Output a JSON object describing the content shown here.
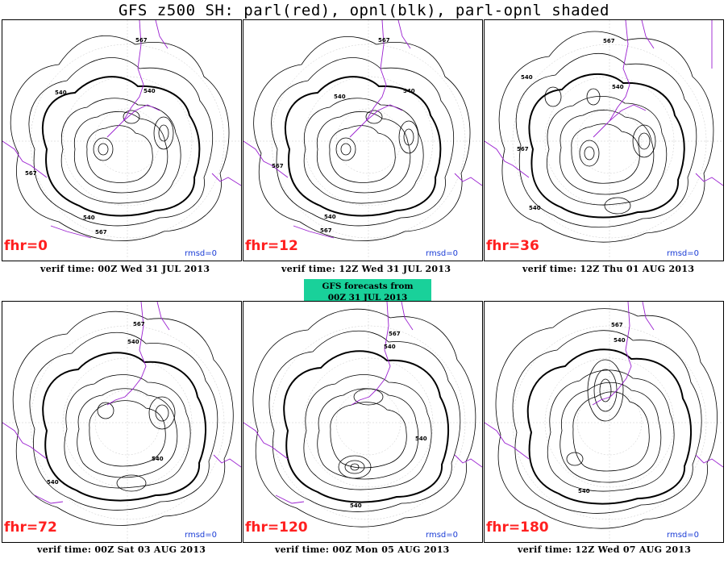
{
  "title": "GFS z500 SH: parl(red), opnl(blk), parl-opnl  shaded",
  "center_box": {
    "line1": "GFS forecasts from",
    "line2": "00Z 31 JUL 2013"
  },
  "colors": {
    "fhr_label": "#ff2020",
    "rmsd_label": "#1a3cd6",
    "coastline": "#9a1fd0",
    "center_box": "#19d19a",
    "contour": "#000000"
  },
  "panels": [
    {
      "fhr": "fhr=0",
      "rmsd": "rmsd=0",
      "verif": "verif time: 00Z Wed 31 JUL 2013",
      "labels": [
        "567",
        "540",
        "540",
        "567",
        "540",
        "567"
      ]
    },
    {
      "fhr": "fhr=12",
      "rmsd": "rmsd=0",
      "verif": "verif time: 12Z Wed 31 JUL 2013",
      "labels": [
        "567",
        "540",
        "540",
        "567",
        "540",
        "567"
      ]
    },
    {
      "fhr": "fhr=36",
      "rmsd": "rmsd=0",
      "verif": "verif time: 12Z Thu 01 AUG 2013",
      "labels": [
        "567",
        "540",
        "540",
        "567",
        "540"
      ]
    },
    {
      "fhr": "fhr=72",
      "rmsd": "rmsd=0",
      "verif": "verif time: 00Z Sat 03 AUG 2013",
      "labels": [
        "567",
        "540",
        "540",
        "540"
      ]
    },
    {
      "fhr": "fhr=120",
      "rmsd": "rmsd=0",
      "verif": "verif time: 00Z Mon 05 AUG 2013",
      "labels": [
        "567",
        "540",
        "540",
        "540"
      ]
    },
    {
      "fhr": "fhr=180",
      "rmsd": "rmsd=0",
      "verif": "verif time: 12Z Wed 07 AUG 2013",
      "labels": [
        "567",
        "540",
        "540"
      ]
    }
  ]
}
